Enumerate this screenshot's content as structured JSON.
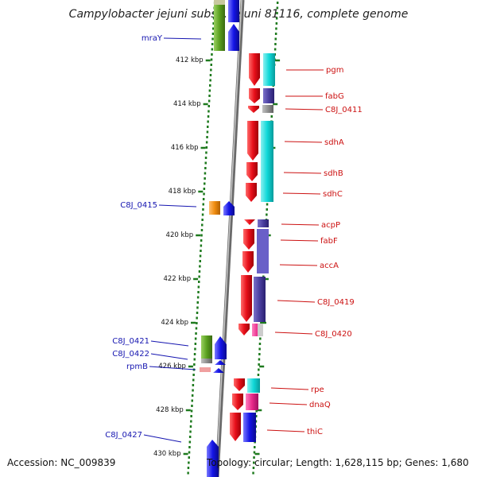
{
  "title": "Campylobacter jejuni subsp. jejuni 81116, complete genome",
  "footer": {
    "accession": "Accession: NC_009839",
    "summary": "Topology: circular; Length: 1,628,115 bp; Genes: 1,680"
  },
  "ruler": [
    "412 kbp",
    "414 kbp",
    "416 kbp",
    "418 kbp",
    "420 kbp",
    "422 kbp",
    "424 kbp",
    "426 kbp",
    "428 kbp",
    "430 kbp"
  ],
  "genes_left": [
    "mraY",
    "C8J_0415",
    "C8J_0421",
    "C8J_0422",
    "rpmB",
    "C8J_0427"
  ],
  "genes_right": [
    "pgm",
    "fabG",
    "C8J_0411",
    "sdhA",
    "sdhB",
    "sdhC",
    "acpP",
    "fabF",
    "accA",
    "C8J_0419",
    "C8J_0420",
    "rpe",
    "dnaQ",
    "thiC"
  ],
  "colors": {
    "left_label": "#1515b0",
    "right_label": "#cc1111",
    "tick": "#1e7a1e",
    "backbone": "#8a8a8a",
    "cds_red": "#e8101a",
    "cds_blue": "#1414e6",
    "cog_cyan": "#10d8d8",
    "cog_purple": "#4a3fa0",
    "cog_green": "#5aa020",
    "cog_orange": "#f08c10",
    "cog_magenta": "#e82a8a"
  }
}
